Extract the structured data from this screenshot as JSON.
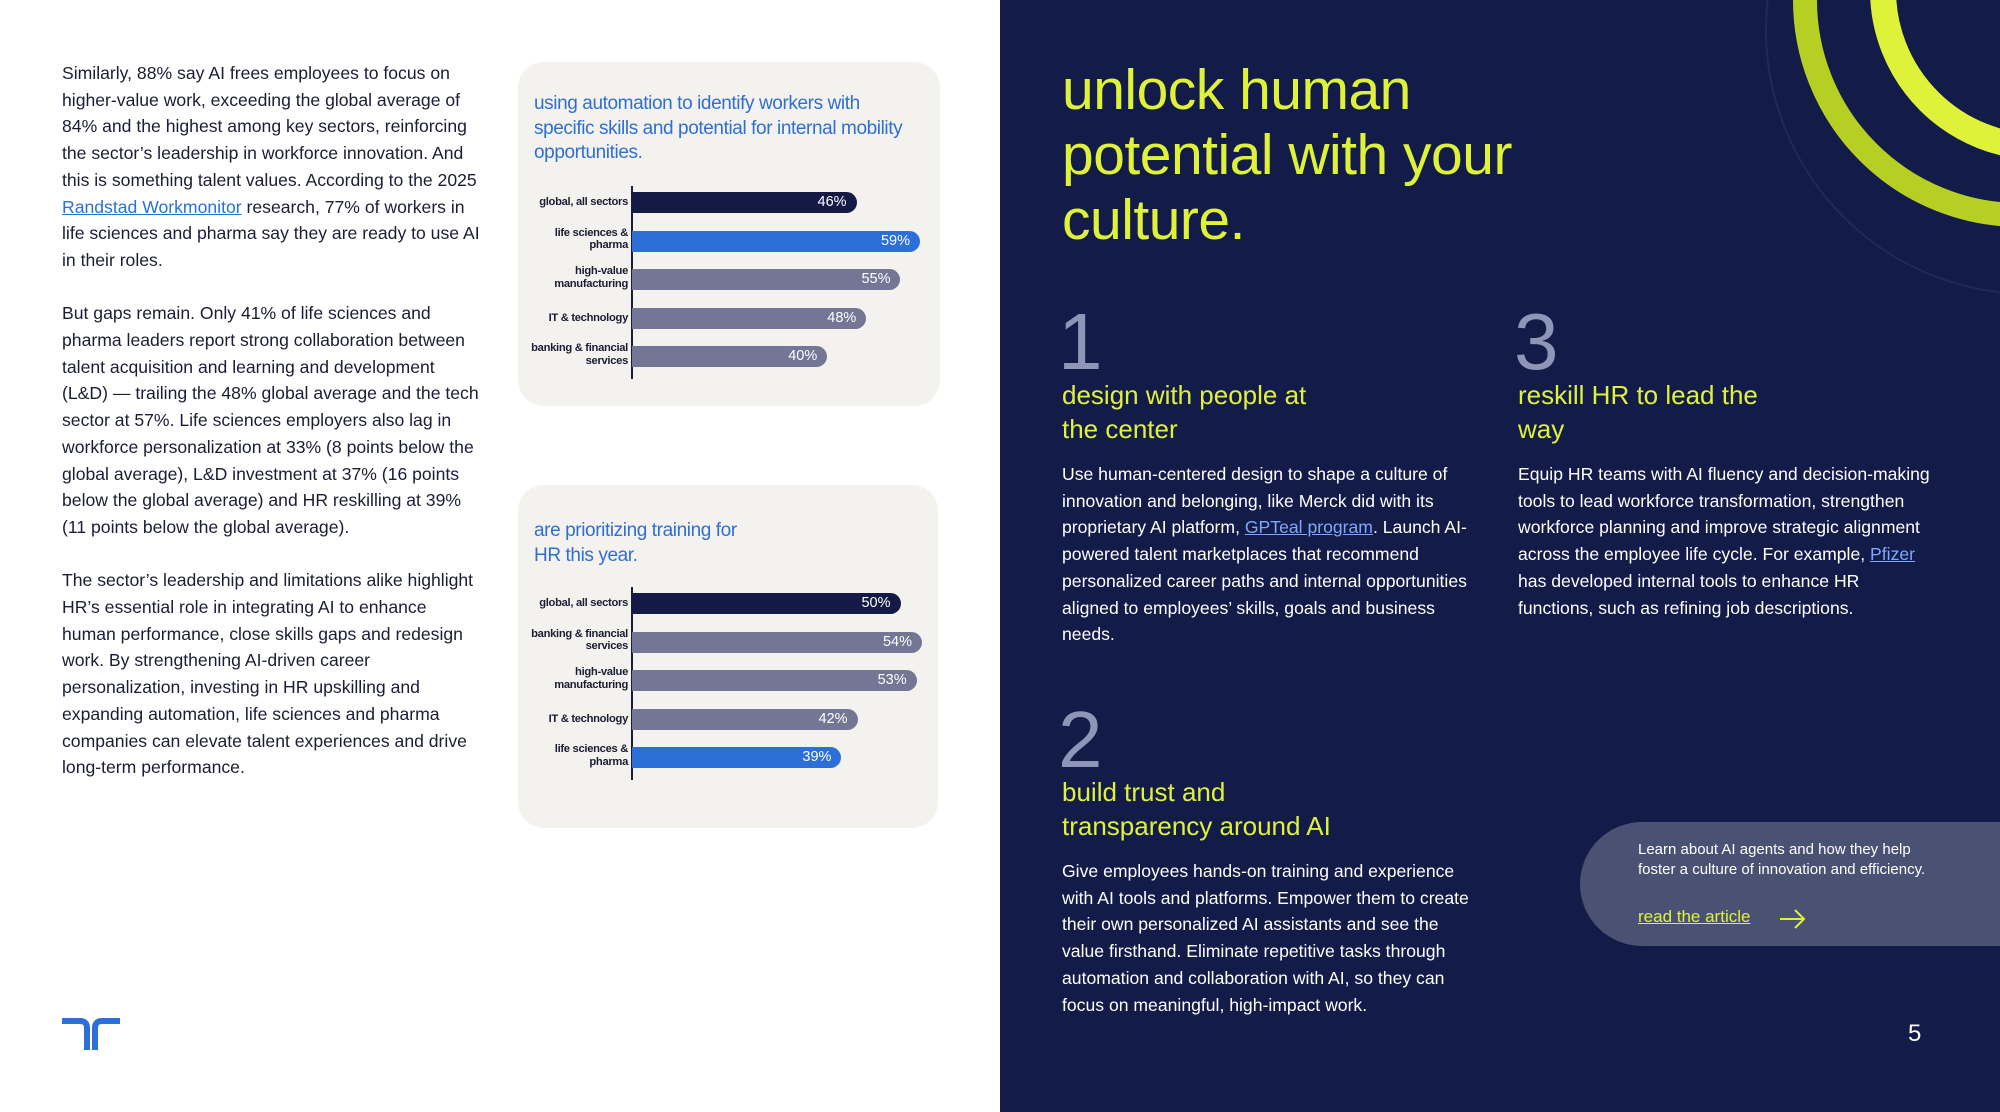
{
  "left": {
    "paragraph1_a": "Similarly, 88% say AI frees employees to focus on higher-value work, exceeding the global average of 84% and the highest among key sectors, reinforcing the sector’s leadership in workforce innovation. And this is something talent values. According to the  2025 ",
    "paragraph1_link": "Randstad Workmonitor",
    "paragraph1_b": " research, 77% of workers in life sciences and pharma say they are ready to use AI in their roles.",
    "paragraph2": "But gaps remain. Only 41% of life sciences and pharma leaders report strong collaboration between talent acquisition and learning and development (L&D) — trailing the 48% global average and the tech sector at 57%. Life sciences employers also lag in workforce personalization at 33% (8 points below the global average), L&D investment at 37% (16 points below the global average) and HR reskilling at 39% (11 points below the global average).",
    "paragraph3": "The sector’s leadership and limitations alike highlight HR’s essential role in integrating AI to enhance human performance, close skills gaps and redesign work. By strengthening AI-driven career personalization, investing in HR upskilling and expanding automation, life sciences and pharma companies can elevate talent experiences and drive long-term performance."
  },
  "chart_data": [
    {
      "type": "bar",
      "orientation": "horizontal",
      "title": "using automation to identify workers with specific skills and potential for internal mobility opportunities.",
      "categories": [
        "global, all sectors",
        "life sciences & pharma",
        "high-value manufacturing",
        "IT & technology",
        "banking & financial services"
      ],
      "values": [
        46,
        59,
        55,
        48,
        40
      ],
      "labels": [
        "46%",
        "59%",
        "55%",
        "48%",
        "40%"
      ],
      "colors": [
        "#141a45",
        "#2c6fd8",
        "#737795",
        "#737795",
        "#737795"
      ],
      "xlim": [
        0,
        60
      ]
    },
    {
      "type": "bar",
      "orientation": "horizontal",
      "title": "are prioritizing training for HR this year.",
      "categories": [
        "global, all sectors",
        "banking & financial services",
        "high-value manufacturing",
        "IT & technology",
        "life sciences & pharma"
      ],
      "values": [
        50,
        54,
        53,
        42,
        39
      ],
      "labels": [
        "50%",
        "54%",
        "53%",
        "42%",
        "39%"
      ],
      "colors": [
        "#141a45",
        "#737795",
        "#737795",
        "#737795",
        "#2c6fd8"
      ],
      "xlim": [
        0,
        55
      ]
    }
  ],
  "right": {
    "headline": "unlock human potential with your culture.",
    "steps": [
      {
        "num": "1",
        "title": "design with people at the center",
        "body_a": "Use human-centered design to shape a culture of innovation and belonging, like Merck did with its proprietary AI platform, ",
        "body_link": "GPTeal program",
        "body_b": ". Launch AI-powered talent marketplaces that recommend personalized career paths and internal opportunities aligned to employees’ skills, goals and business needs."
      },
      {
        "num": "2",
        "title": "build trust and transparency around AI",
        "body": "Give employees hands-on training and experience with AI tools and platforms. Empower them to create their own personalized AI assistants and see the value firsthand. Eliminate repetitive tasks through automation and collaboration with AI, so they can focus on meaningful, high-impact work."
      },
      {
        "num": "3",
        "title": "reskill HR to lead the way",
        "body_a": "Equip HR teams with AI fluency and decision-making tools to lead workforce transformation, strengthen workforce planning and improve strategic alignment across the employee life cycle. For example, ",
        "body_link": "Pfizer",
        "body_b": " has developed internal tools to enhance HR functions, such as refining job descriptions."
      }
    ],
    "cta": {
      "text": "Learn about AI agents and how they help foster a culture of innovation and efficiency.",
      "link": "read the article",
      "icon": "arrow-right-icon"
    },
    "page_number": "5"
  },
  "colors": {
    "navy": "#131b48",
    "accent_yellow": "#dff23a",
    "brand_blue": "#2c6fd8",
    "bar_gray": "#737795",
    "card_bg": "#f4f2ee"
  },
  "logo_icon": "randstad-logo-icon"
}
